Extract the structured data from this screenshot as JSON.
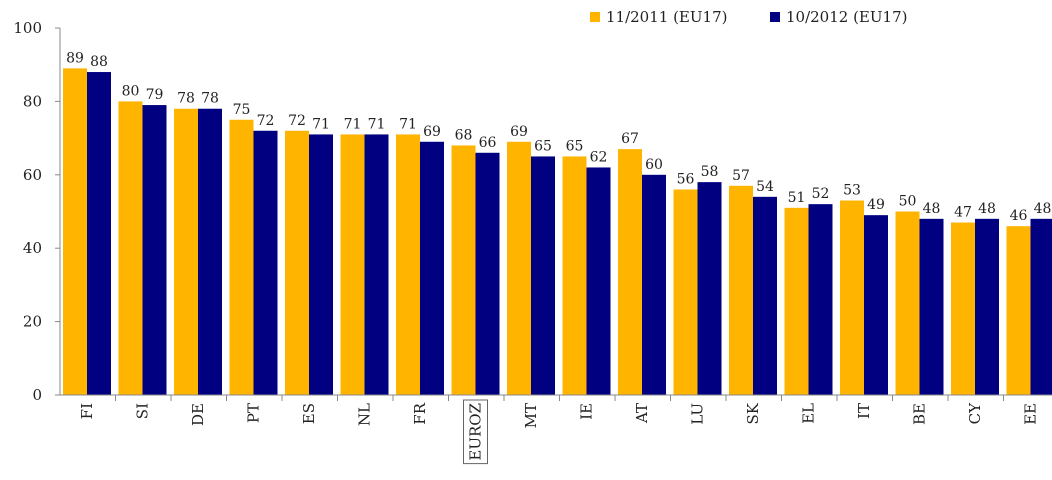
{
  "chart_data": {
    "type": "bar",
    "categories": [
      "FI",
      "SI",
      "DE",
      "PT",
      "ES",
      "NL",
      "FR",
      "EUROZ",
      "MT",
      "IE",
      "AT",
      "LU",
      "SK",
      "EL",
      "IT",
      "BE",
      "CY",
      "EE"
    ],
    "series": [
      {
        "name": "11/2011 (EU17)",
        "color": "#ffb400",
        "values": [
          89,
          80,
          78,
          75,
          72,
          71,
          71,
          68,
          69,
          65,
          67,
          56,
          57,
          51,
          53,
          50,
          47,
          46
        ]
      },
      {
        "name": "10/2012 (EU17)",
        "color": "#000080",
        "values": [
          88,
          79,
          78,
          72,
          71,
          71,
          69,
          66,
          65,
          62,
          60,
          58,
          54,
          52,
          49,
          48,
          48,
          48
        ]
      }
    ],
    "ylim": [
      0,
      100
    ],
    "yticks": [
      0,
      20,
      40,
      60,
      80,
      100
    ],
    "grid": false
  }
}
